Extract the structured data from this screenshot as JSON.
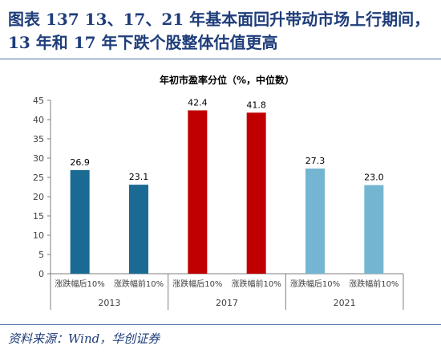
{
  "figure": {
    "title": "图表 137   13、17、21 年基本面回升带动市场上行期间，13 年和 17 年下跌个股整体估值更高",
    "source": "资料来源：Wind，华创证券"
  },
  "chart_data": {
    "type": "bar",
    "title": "年初市盈率分位（%，中位数）",
    "groups": [
      "2013",
      "2017",
      "2021"
    ],
    "categories": [
      "涨跌幅后10%",
      "涨跌幅前10%",
      "涨跌幅后10%",
      "涨跌幅前10%",
      "涨跌幅后10%",
      "涨跌幅前10%"
    ],
    "group_of_category": [
      0,
      0,
      1,
      1,
      2,
      2
    ],
    "values": [
      26.9,
      23.1,
      42.4,
      41.8,
      27.3,
      23.0
    ],
    "value_labels": [
      "26.9",
      "23.1",
      "42.4",
      "41.8",
      "27.3",
      "23.0"
    ],
    "bar_colors": [
      "#1b6a94",
      "#1b6a94",
      "#c00000",
      "#c00000",
      "#74b5d1",
      "#74b5d1"
    ],
    "ylim": [
      0,
      45
    ],
    "yticks": [
      0,
      5,
      10,
      15,
      20,
      25,
      30,
      35,
      40,
      45
    ],
    "grid": false,
    "legend": "none"
  }
}
